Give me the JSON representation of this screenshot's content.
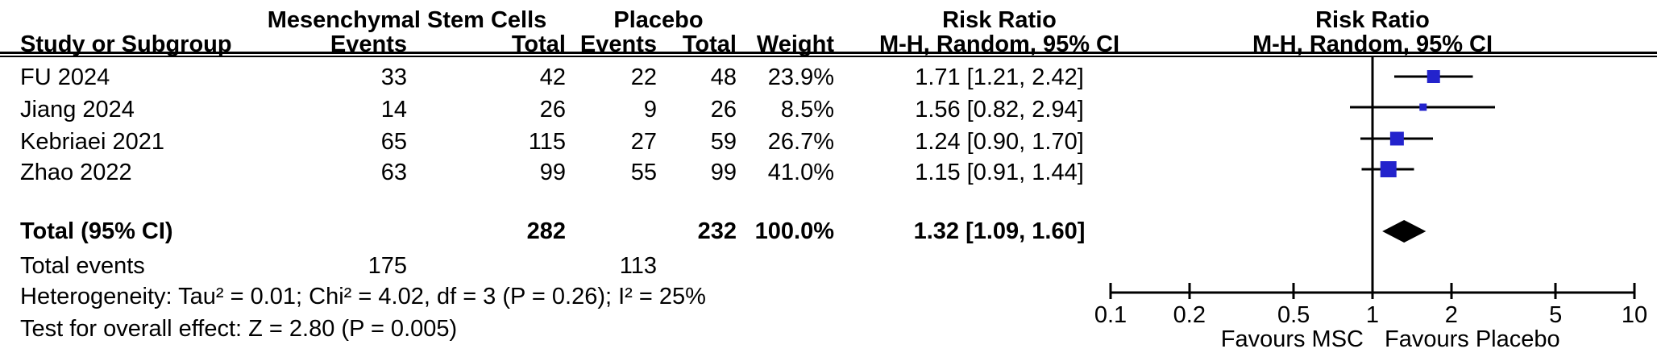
{
  "header": {
    "group1": "Mesenchymal Stem Cells",
    "group2": "Placebo",
    "risk_ratio_col_title": "Risk Ratio",
    "risk_ratio_plot_title": "Risk Ratio",
    "method_col": "M-H, Random, 95% CI",
    "method_plot": "M-H, Random, 95% CI",
    "study_col": "Study or Subgroup",
    "events_col_1": "Events",
    "total_col_1": "Total",
    "events_col_2": "Events",
    "total_col_2": "Total",
    "weight_col": "Weight"
  },
  "rows": [
    {
      "study": "FU 2024",
      "events1": "33",
      "total1": "42",
      "events2": "22",
      "total2": "48",
      "weight": "23.9%",
      "rr_ci": "1.71 [1.21, 2.42]"
    },
    {
      "study": "Jiang 2024",
      "events1": "14",
      "total1": "26",
      "events2": "9",
      "total2": "26",
      "weight": "8.5%",
      "rr_ci": "1.56 [0.82, 2.94]"
    },
    {
      "study": "Kebriaei 2021",
      "events1": "65",
      "total1": "115",
      "events2": "27",
      "total2": "59",
      "weight": "26.7%",
      "rr_ci": "1.24 [0.90, 1.70]"
    },
    {
      "study": "Zhao 2022",
      "events1": "63",
      "total1": "99",
      "events2": "55",
      "total2": "99",
      "weight": "41.0%",
      "rr_ci": "1.15 [0.91, 1.44]"
    }
  ],
  "totals": {
    "label": "Total (95% CI)",
    "total1": "282",
    "total2": "232",
    "weight": "100.0%",
    "rr_ci": "1.32 [1.09, 1.60]",
    "events_label": "Total events",
    "events1": "175",
    "events2": "113"
  },
  "footnotes": {
    "heterogeneity": "Heterogeneity: Tau² = 0.01; Chi² = 4.02, df = 3 (P = 0.26); I² = 25%",
    "overall_effect": "Test for overall effect: Z = 2.80 (P = 0.005)"
  },
  "chart_data": {
    "type": "forest",
    "x_scale": "log10",
    "xlim": [
      0.1,
      10
    ],
    "axis_ticks": [
      "0.1",
      "0.2",
      "0.5",
      "1",
      "2",
      "5",
      "10"
    ],
    "null_line": 1,
    "effect_measure": "Risk Ratio",
    "method": "M-H, Random, 95% CI",
    "favours_left": "Favours MSC",
    "favours_right": "Favours Placebo",
    "marker_color": "#2323CC",
    "line_color": "#000000",
    "diamond_color": "#000000",
    "studies": [
      {
        "name": "FU 2024",
        "rr": 1.71,
        "ci_low": 1.21,
        "ci_high": 2.42,
        "weight_pct": 23.9
      },
      {
        "name": "Jiang 2024",
        "rr": 1.56,
        "ci_low": 0.82,
        "ci_high": 2.94,
        "weight_pct": 8.5
      },
      {
        "name": "Kebriaei 2021",
        "rr": 1.24,
        "ci_low": 0.9,
        "ci_high": 1.7,
        "weight_pct": 26.7
      },
      {
        "name": "Zhao 2022",
        "rr": 1.15,
        "ci_low": 0.91,
        "ci_high": 1.44,
        "weight_pct": 41.0
      }
    ],
    "overall": {
      "rr": 1.32,
      "ci_low": 1.09,
      "ci_high": 1.6
    }
  }
}
